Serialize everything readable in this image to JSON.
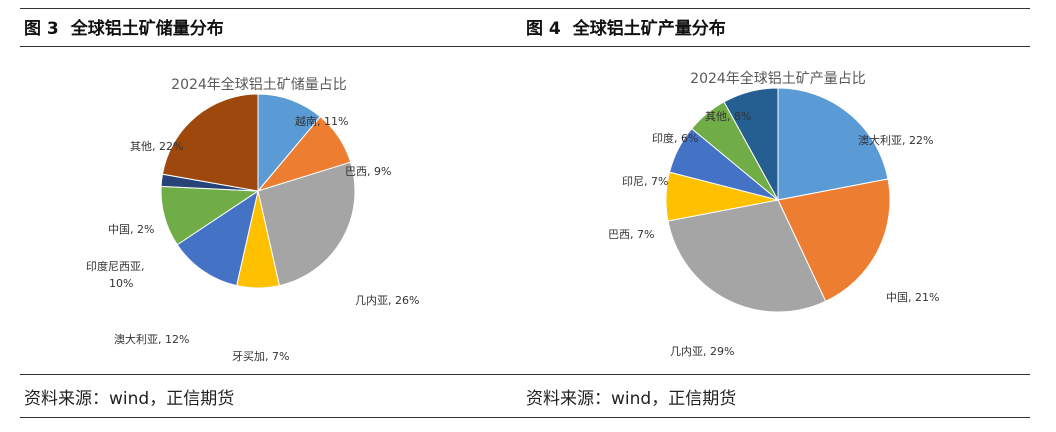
{
  "left": {
    "fig_no": "图 3",
    "fig_title": "全球铝土矿储量分布",
    "source": "资料来源：wind，正信期货"
  },
  "right": {
    "fig_no": "图 4",
    "fig_title": "全球铝土矿产量分布",
    "source": "资料来源：wind，正信期货"
  },
  "chart_data": [
    {
      "type": "pie",
      "title": "2024年全球铝土矿储量占比",
      "categories": [
        "越南",
        "巴西",
        "几内亚",
        "牙买加",
        "澳大利亚",
        "印度尼西亚",
        "中国",
        "其他"
      ],
      "values": [
        11,
        9,
        26,
        7,
        12,
        10,
        2,
        22
      ],
      "labels": [
        "越南, 11%",
        "巴西, 9%",
        "几内亚, 26%",
        "牙买加, 7%",
        "澳大利亚, 12%",
        "印度尼西亚,",
        "10%",
        "中国, 2%",
        "其他, 22%"
      ],
      "colors": [
        "#5B9BD5",
        "#ED7D31",
        "#A5A5A5",
        "#FFC000",
        "#4472C4",
        "#70AD47",
        "#264478",
        "#9E480E"
      ]
    },
    {
      "type": "pie",
      "title": "2024年全球铝土矿产量占比",
      "categories": [
        "澳大利亚",
        "中国",
        "几内亚",
        "巴西",
        "印尼",
        "印度",
        "其他"
      ],
      "values": [
        22,
        21,
        29,
        7,
        7,
        6,
        8
      ],
      "labels": [
        "澳大利亚, 22%",
        "中国, 21%",
        "几内亚, 29%",
        "巴西, 7%",
        "印尼, 7%",
        "印度, 6%",
        "其他, 8%"
      ],
      "colors": [
        "#5B9BD5",
        "#ED7D31",
        "#A5A5A5",
        "#FFC000",
        "#4472C4",
        "#70AD47",
        "#255E91"
      ]
    }
  ]
}
